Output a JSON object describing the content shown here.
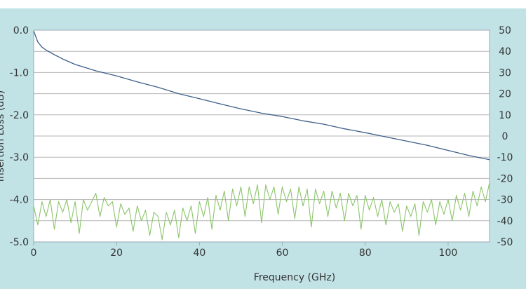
{
  "chart_data": {
    "type": "line",
    "xlabel": "Frequency (GHz)",
    "ylabel_left": "Insertion Loss (dB)",
    "xlim": [
      0,
      110
    ],
    "ylim_left": [
      -5.0,
      0.0
    ],
    "ylim_right": [
      -50,
      50
    ],
    "x_ticks": [
      "0",
      "20",
      "40",
      "60",
      "80",
      "100"
    ],
    "y_left_ticks": [
      "0.0",
      "-1.0",
      "-2.0",
      "-3.0",
      "-4.0",
      "-5.0"
    ],
    "y_right_ticks": [
      "50",
      "40",
      "30",
      "20",
      "10",
      "0",
      "-10",
      "-20",
      "-30",
      "-40",
      "-50"
    ],
    "grid": true,
    "colors": {
      "background": "#c2e3e6",
      "insertion_loss": "#3d5f8a",
      "return_loss": "#8cc56b",
      "grid": "#b5b5b5"
    },
    "series": [
      {
        "axis": "left",
        "color": "#3d5f8a",
        "x": [
          0,
          1,
          2,
          3,
          5,
          7,
          10,
          15,
          20,
          25,
          30,
          35,
          40,
          45,
          50,
          55,
          60,
          65,
          70,
          75,
          80,
          85,
          90,
          95,
          100,
          105,
          110
        ],
        "y": [
          -0.02,
          -0.28,
          -0.4,
          -0.47,
          -0.58,
          -0.68,
          -0.81,
          -0.96,
          -1.08,
          -1.22,
          -1.35,
          -1.5,
          -1.62,
          -1.74,
          -1.86,
          -1.96,
          -2.04,
          -2.14,
          -2.22,
          -2.33,
          -2.42,
          -2.52,
          -2.62,
          -2.72,
          -2.84,
          -2.96,
          -3.06
        ]
      },
      {
        "axis": "right",
        "color": "#8cc56b",
        "x": [
          0,
          1,
          2,
          3,
          4,
          5,
          6,
          7,
          8,
          9,
          10,
          11,
          12,
          13,
          14,
          15,
          16,
          17,
          18,
          19,
          20,
          21,
          22,
          23,
          24,
          25,
          26,
          27,
          28,
          29,
          30,
          31,
          32,
          33,
          34,
          35,
          36,
          37,
          38,
          39,
          40,
          41,
          42,
          43,
          44,
          45,
          46,
          47,
          48,
          49,
          50,
          51,
          52,
          53,
          54,
          55,
          56,
          57,
          58,
          59,
          60,
          61,
          62,
          63,
          64,
          65,
          66,
          67,
          68,
          69,
          70,
          71,
          72,
          73,
          74,
          75,
          76,
          77,
          78,
          79,
          80,
          81,
          82,
          83,
          84,
          85,
          86,
          87,
          88,
          89,
          90,
          91,
          92,
          93,
          94,
          95,
          96,
          97,
          98,
          99,
          100,
          101,
          102,
          103,
          104,
          105,
          106,
          107,
          108,
          109,
          110
        ],
        "y": [
          -33,
          -42,
          -31,
          -38,
          -30,
          -44,
          -31,
          -36,
          -30,
          -41,
          -31,
          -46,
          -30,
          -35,
          -31,
          -27,
          -38,
          -29,
          -33,
          -31,
          -43,
          -32,
          -37,
          -34,
          -45,
          -33,
          -40,
          -35,
          -47,
          -36,
          -38,
          -49,
          -36,
          -42,
          -35,
          -48,
          -34,
          -40,
          -33,
          -46,
          -31,
          -38,
          -29,
          -44,
          -28,
          -35,
          -26,
          -40,
          -25,
          -33,
          -24,
          -38,
          -24,
          -32,
          -23,
          -41,
          -23,
          -30,
          -24,
          -37,
          -24,
          -31,
          -25,
          -39,
          -24,
          -33,
          -25,
          -43,
          -25,
          -32,
          -26,
          -38,
          -26,
          -34,
          -27,
          -40,
          -27,
          -33,
          -28,
          -44,
          -28,
          -35,
          -29,
          -38,
          -30,
          -42,
          -31,
          -36,
          -32,
          -45,
          -33,
          -38,
          -32,
          -47,
          -31,
          -36,
          -30,
          -42,
          -31,
          -37,
          -30,
          -40,
          -28,
          -35,
          -27,
          -38,
          -26,
          -33,
          -24,
          -31,
          -22
        ]
      }
    ]
  }
}
